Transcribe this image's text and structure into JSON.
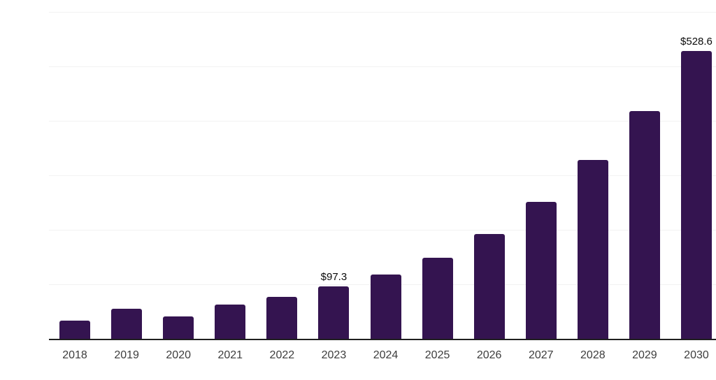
{
  "chart_data": {
    "type": "bar",
    "title": "",
    "categories": [
      "2018",
      "2019",
      "2020",
      "2021",
      "2022",
      "2023",
      "2024",
      "2025",
      "2026",
      "2027",
      "2028",
      "2029",
      "2030"
    ],
    "values": [
      34.5,
      56.2,
      42.2,
      63.9,
      78.0,
      97.3,
      118.9,
      149.5,
      193.0,
      251.8,
      328.4,
      417.9,
      528.6
    ],
    "value_labels": [
      {
        "index": 5,
        "label": "$97.3"
      },
      {
        "index": 12,
        "label": "$528.6"
      }
    ],
    "value_prefix": "$",
    "xlabel": "",
    "ylabel": "",
    "ylim": [
      0,
      600
    ],
    "gridline_interval": 100,
    "grid": true,
    "legend": false,
    "colors": {
      "bar": "#341450",
      "gridline": "#f2f2f2",
      "axis_line": "#1f1f1f",
      "tick_label": "#3d3d3d",
      "value_label": "#0a0a0a",
      "background": "#ffffff"
    }
  }
}
